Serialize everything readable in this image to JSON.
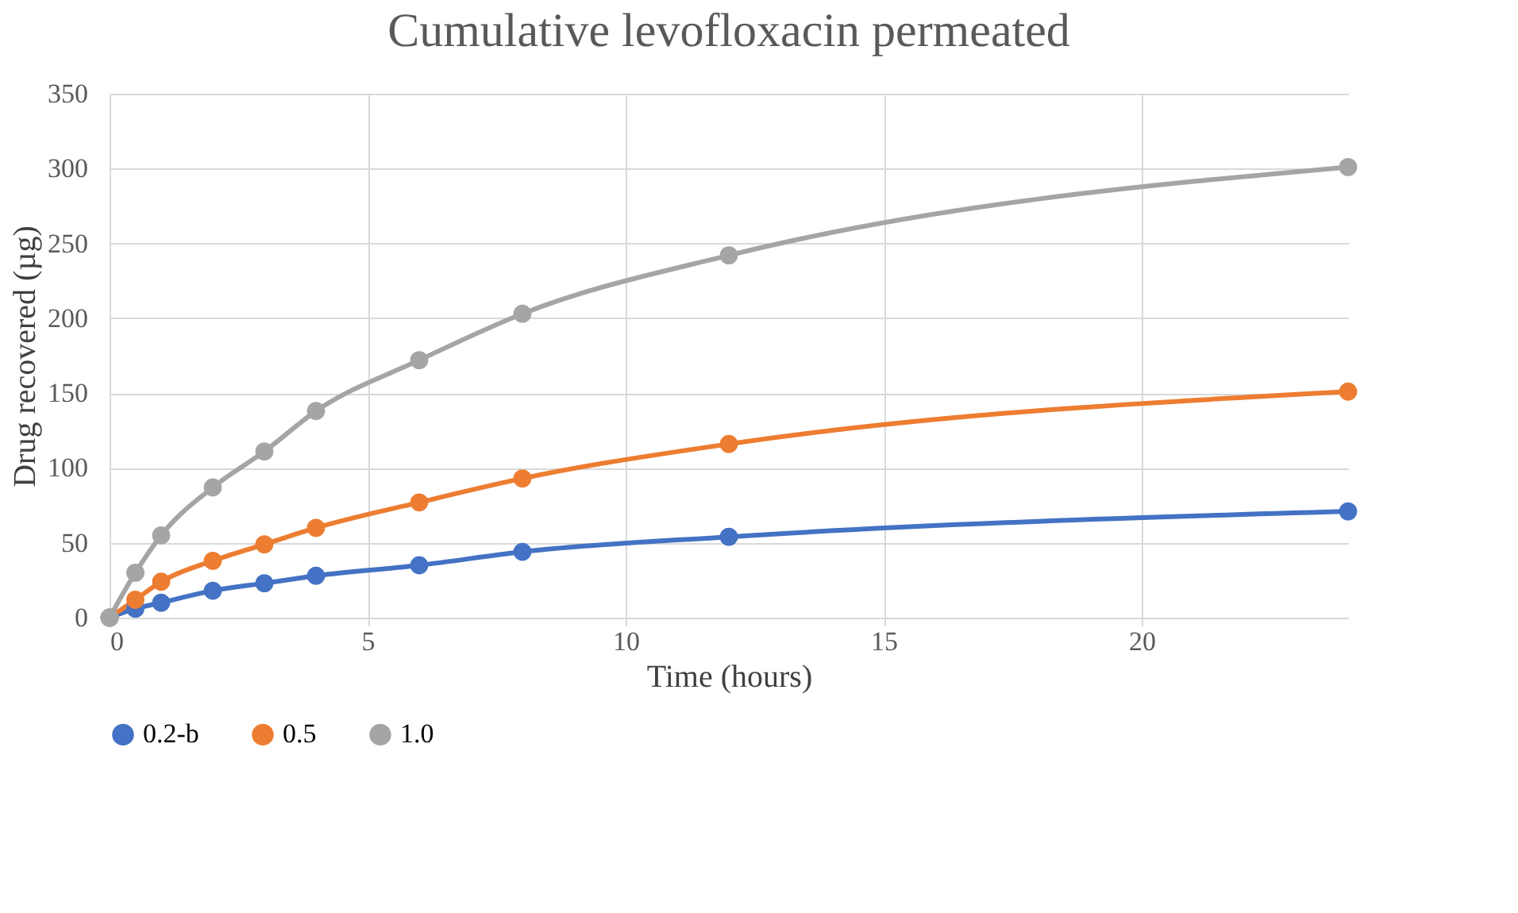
{
  "chart_data": {
    "type": "line",
    "title": "Cumulative levofloxacin permeated",
    "xlabel": "Time (hours)",
    "ylabel": "Drug recovered (µg)",
    "x": [
      0,
      0.5,
      1,
      2,
      3,
      4,
      6,
      8,
      12,
      24
    ],
    "series": [
      {
        "name": "0.2-b",
        "color": "#4472c4",
        "values": [
          0,
          6,
          10,
          18,
          23,
          28,
          35,
          44,
          54,
          71
        ]
      },
      {
        "name": "0.5",
        "color": "#ed7d31",
        "values": [
          0,
          12,
          24,
          38,
          49,
          60,
          77,
          93,
          116,
          151
        ]
      },
      {
        "name": "1.0",
        "color": "#a5a5a5",
        "values": [
          0,
          30,
          55,
          87,
          111,
          138,
          172,
          203,
          242,
          301
        ]
      }
    ],
    "xlim": [
      0,
      24
    ],
    "xticks": [
      0,
      5,
      10,
      15,
      20
    ],
    "ylim": [
      0,
      350
    ],
    "yticks": [
      0,
      50,
      100,
      150,
      200,
      250,
      300,
      350
    ],
    "grid": true,
    "legend": "bottom",
    "marker": "circle",
    "line_style": "solid"
  }
}
